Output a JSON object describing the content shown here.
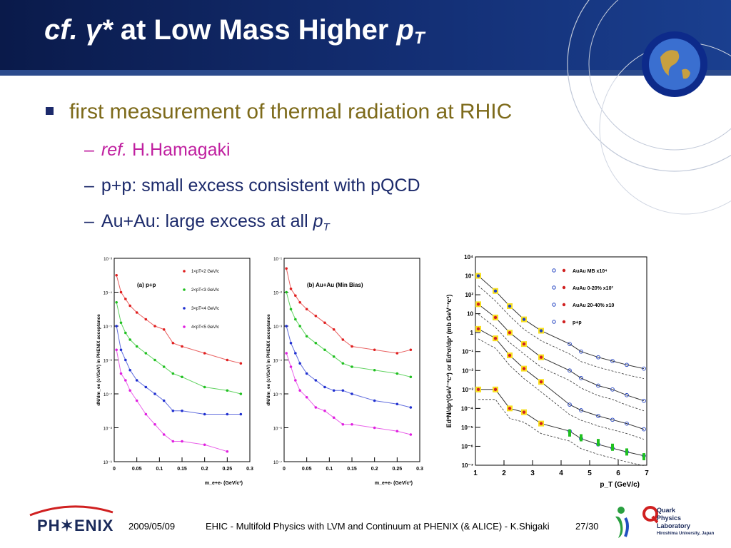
{
  "slide": {
    "title_cf": "cf.",
    "title_gamma": "γ*",
    "title_main": "at Low Mass Higher",
    "title_p": "p",
    "title_sub": "T"
  },
  "bullets": {
    "main": "first measurement of thermal radiation at RHIC",
    "ref_italic": "ref.",
    "ref_name": "H.Hamagaki",
    "pp": "p+p: small excess consistent with pQCD",
    "auau_prefix": "Au+Au: large excess at all",
    "auau_p": "p",
    "auau_sub": "T"
  },
  "footer": {
    "logo": "PH✶ENIX",
    "date": "2009/05/09",
    "talk": "EHIC - Multifold Physics with LVM and Continuum at PHENIX (& ALICE) - K.Shigaki",
    "page": "27/30",
    "qpl_1": "Quark",
    "qpl_2": "Physics",
    "qpl_3": "Laboratory",
    "qpl_4": "Hiroshima University, Japan"
  },
  "chart_data": [
    {
      "type": "scatter",
      "panel_label": "(a) p+p",
      "ylabel": "dN/dm_ee (c²/GeV) in PHENIX acceptance",
      "xlabel": "m_e+e- (GeV/c²)",
      "xlim": [
        0,
        0.3
      ],
      "ylog": true,
      "yticks": [
        "10⁻³",
        "10⁻⁴",
        "10⁻⁵",
        "10⁻⁶",
        "10⁻⁷",
        "10⁻⁸",
        "10⁻⁹"
      ],
      "xticks": [
        "0",
        "0.05",
        "0.1",
        "0.15",
        "0.2",
        "0.25",
        "0.3"
      ],
      "legend": [
        "1<pT<2 GeV/c",
        "2<pT<3 GeV/c",
        "3<pT<4 GeV/c",
        "4<pT<5 GeV/c"
      ],
      "colors": [
        "#e02020",
        "#20c020",
        "#2030d0",
        "#e020e0"
      ],
      "series": [
        {
          "x": [
            0.005,
            0.015,
            0.025,
            0.035,
            0.05,
            0.07,
            0.09,
            0.11,
            0.13,
            0.15,
            0.2,
            0.25,
            0.28
          ],
          "y": [
            -3.5,
            -4.0,
            -4.2,
            -4.4,
            -4.6,
            -4.8,
            -5.0,
            -5.1,
            -5.5,
            -5.6,
            -5.8,
            -6.0,
            -6.1
          ]
        },
        {
          "x": [
            0.005,
            0.015,
            0.025,
            0.035,
            0.05,
            0.07,
            0.09,
            0.11,
            0.13,
            0.15,
            0.2,
            0.25,
            0.28
          ],
          "y": [
            -4.3,
            -4.9,
            -5.2,
            -5.4,
            -5.6,
            -5.8,
            -6.0,
            -6.2,
            -6.4,
            -6.5,
            -6.8,
            -6.9,
            -7.0
          ]
        },
        {
          "x": [
            0.005,
            0.015,
            0.025,
            0.035,
            0.05,
            0.07,
            0.09,
            0.11,
            0.13,
            0.15,
            0.2,
            0.25,
            0.28
          ],
          "y": [
            -5.0,
            -5.7,
            -6.0,
            -6.3,
            -6.6,
            -6.8,
            -7.0,
            -7.2,
            -7.5,
            -7.5,
            -7.6,
            -7.6,
            -7.6
          ]
        },
        {
          "x": [
            0.005,
            0.015,
            0.025,
            0.035,
            0.05,
            0.07,
            0.09,
            0.11,
            0.13,
            0.15,
            0.2,
            0.25
          ],
          "y": [
            -5.7,
            -6.4,
            -6.6,
            -6.9,
            -7.2,
            -7.6,
            -7.9,
            -8.2,
            -8.4,
            -8.4,
            -8.5,
            -8.7
          ]
        }
      ]
    },
    {
      "type": "scatter",
      "panel_label": "(b) Au+Au (Min Bias)",
      "ylabel": "dN/dm_ee (c²/GeV) in PHENIX acceptance",
      "xlabel": "m_e+e- (GeV/c²)",
      "xlim": [
        0,
        0.3
      ],
      "ylog": true,
      "yticks": [
        "10⁻¹",
        "10⁻²",
        "10⁻³",
        "10⁻⁴",
        "10⁻⁵",
        "10⁻⁶",
        "10⁻⁷"
      ],
      "xticks": [
        "0",
        "0.05",
        "0.1",
        "0.15",
        "0.2",
        "0.25",
        "0.3"
      ],
      "colors": [
        "#e02020",
        "#20c020",
        "#2030d0",
        "#e020e0"
      ],
      "series": [
        {
          "x": [
            0.005,
            0.015,
            0.025,
            0.035,
            0.05,
            0.07,
            0.09,
            0.11,
            0.13,
            0.15,
            0.2,
            0.25,
            0.28
          ],
          "y": [
            -1.3,
            -1.9,
            -2.1,
            -2.3,
            -2.5,
            -2.7,
            -2.9,
            -3.1,
            -3.4,
            -3.6,
            -3.7,
            -3.8,
            -3.7
          ]
        },
        {
          "x": [
            0.005,
            0.015,
            0.025,
            0.035,
            0.05,
            0.07,
            0.09,
            0.11,
            0.13,
            0.15,
            0.2,
            0.25,
            0.28
          ],
          "y": [
            -2.0,
            -2.5,
            -2.8,
            -3.0,
            -3.3,
            -3.5,
            -3.7,
            -3.9,
            -4.1,
            -4.2,
            -4.3,
            -4.4,
            -4.5
          ]
        },
        {
          "x": [
            0.005,
            0.015,
            0.025,
            0.035,
            0.05,
            0.07,
            0.09,
            0.11,
            0.13,
            0.15,
            0.2,
            0.25,
            0.28
          ],
          "y": [
            -3.0,
            -3.5,
            -3.8,
            -4.1,
            -4.4,
            -4.6,
            -4.8,
            -4.9,
            -4.9,
            -5.0,
            -5.2,
            -5.3,
            -5.4
          ]
        },
        {
          "x": [
            0.005,
            0.015,
            0.025,
            0.035,
            0.05,
            0.07,
            0.09,
            0.11,
            0.13,
            0.15,
            0.2,
            0.25,
            0.28
          ],
          "y": [
            -3.8,
            -4.2,
            -4.6,
            -4.9,
            -5.1,
            -5.4,
            -5.5,
            -5.7,
            -5.9,
            -5.9,
            -6.0,
            -6.1,
            -6.2
          ]
        }
      ]
    },
    {
      "type": "scatter",
      "ylabel": "Ed³N/dp³(GeV⁻²c³) or Ed³σ/dp³ (mb GeV⁻²c³)",
      "xlabel": "p_T (GeV/c)",
      "xlim": [
        1,
        7
      ],
      "ylog": true,
      "ylim_log": [
        -7,
        4
      ],
      "yticks": [
        "10⁴",
        "10³",
        "10²",
        "10",
        "1",
        "10⁻¹",
        "10⁻²",
        "10⁻³",
        "10⁻⁴",
        "10⁻⁵",
        "10⁻⁶",
        "10⁻⁷"
      ],
      "xticks": [
        "1",
        "2",
        "3",
        "4",
        "5",
        "6",
        "7"
      ],
      "legend": [
        "AuAu MB x10⁴",
        "AuAu 0-20% x10²",
        "AuAu 20-40% x10",
        "p+p"
      ],
      "series": [
        {
          "name": "AuAu MB x10⁴",
          "x": [
            1.1,
            1.7,
            2.2,
            2.7,
            3.3,
            4.3,
            4.7,
            5.3,
            5.8,
            6.3,
            6.9
          ],
          "y": [
            3.0,
            2.2,
            1.4,
            0.7,
            0.1,
            -0.6,
            -1.0,
            -1.3,
            -1.5,
            -1.7,
            -1.9
          ]
        },
        {
          "name": "AuAu 0-20% x10²",
          "x": [
            1.1,
            1.7,
            2.2,
            2.7,
            3.3,
            4.3,
            4.7,
            5.3,
            5.8,
            6.3,
            6.9
          ],
          "y": [
            1.5,
            0.8,
            0.0,
            -0.6,
            -1.3,
            -2.0,
            -2.4,
            -2.8,
            -3.0,
            -3.3,
            -3.6
          ]
        },
        {
          "name": "AuAu 20-40% x10",
          "x": [
            1.1,
            1.7,
            2.2,
            2.7,
            3.3,
            4.3,
            4.7,
            5.3,
            5.8,
            6.3,
            6.9
          ],
          "y": [
            0.2,
            -0.3,
            -1.2,
            -1.9,
            -2.6,
            -3.8,
            -4.1,
            -4.4,
            -4.6,
            -4.8,
            -5.1
          ]
        },
        {
          "name": "p+p",
          "x": [
            1.1,
            1.7,
            2.2,
            2.7,
            3.3,
            4.3,
            4.7,
            5.3,
            5.8,
            6.3,
            6.9
          ],
          "y": [
            -3.0,
            -3.0,
            -4.0,
            -4.2,
            -4.8,
            -5.2,
            -5.6,
            -5.9,
            -6.1,
            -6.3,
            -6.5
          ]
        }
      ]
    }
  ]
}
